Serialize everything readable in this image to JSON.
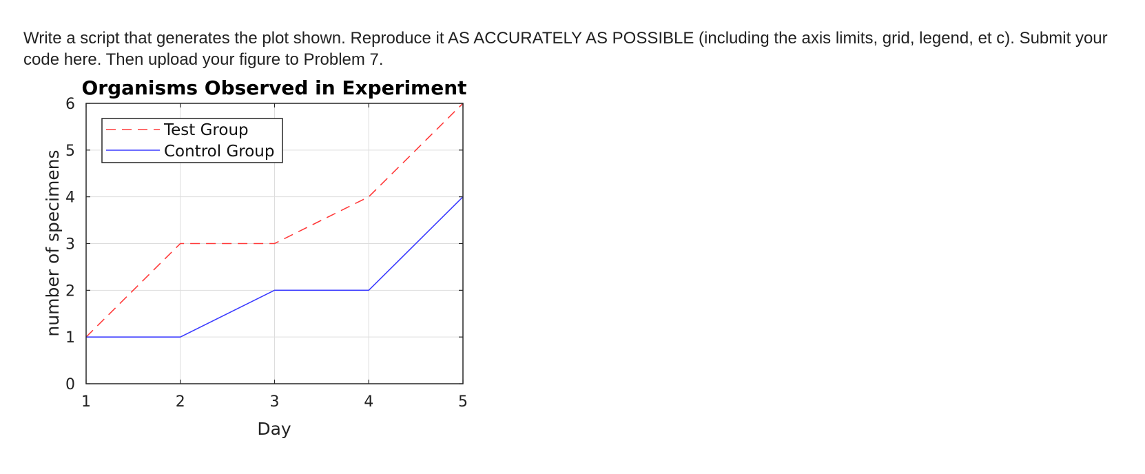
{
  "prompt": {
    "text": "Write a script that generates the plot shown.  Reproduce it AS ACCURATELY AS POSSIBLE (including the axis limits, grid, legend, et c).  Submit your code here.  Then upload your figure to Problem 7."
  },
  "chart_data": {
    "type": "line",
    "title": "Organisms Observed in Experiment",
    "xlabel": "Day",
    "ylabel": "number of specimens",
    "x": [
      1,
      2,
      3,
      4,
      5
    ],
    "xlim": [
      1,
      5
    ],
    "ylim": [
      0,
      6
    ],
    "xticks": [
      1,
      2,
      3,
      4,
      5
    ],
    "yticks": [
      0,
      1,
      2,
      3,
      4,
      5,
      6
    ],
    "grid": true,
    "legend_location": "top-left",
    "series": [
      {
        "name": "Test Group",
        "values": [
          1,
          3,
          3,
          4,
          6
        ],
        "color": "#ff3b3b",
        "style": "dashed"
      },
      {
        "name": "Control Group",
        "values": [
          1,
          1,
          2,
          2,
          4
        ],
        "color": "#3b3bff",
        "style": "solid"
      }
    ]
  }
}
